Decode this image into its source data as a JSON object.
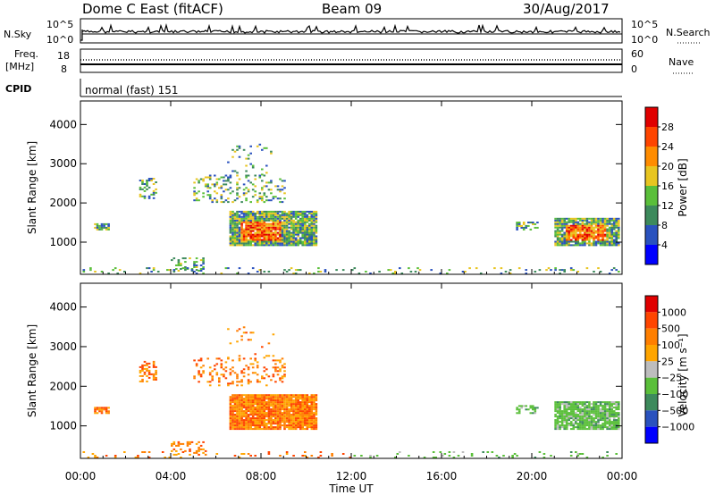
{
  "header": {
    "station": "Dome C East (fitACF)",
    "beam": "Beam 09",
    "date": "30/Aug/2017"
  },
  "chart_data": [
    {
      "type": "line",
      "name": "noise-panel",
      "left_label": "N.Sky",
      "left_ticks": [
        "10^5",
        "10^0"
      ],
      "right_label": "N.Search",
      "right_ticks": [
        "10^5",
        "10^0"
      ]
    },
    {
      "type": "line",
      "name": "freq-panel",
      "left_label_line1": "Freq.",
      "left_label_line2": "[MHz]",
      "left_ticks": [
        "18",
        "8"
      ],
      "right_label": "Nave",
      "right_ticks": [
        "60",
        "0"
      ]
    },
    {
      "type": "text",
      "name": "cpid-panel",
      "left_label": "CPID",
      "value": "normal (fast) 151"
    },
    {
      "type": "heatmap",
      "name": "power-panel",
      "ylabel": "Slant Range [km]",
      "yticks": [
        1000,
        2000,
        3000,
        4000
      ],
      "ylim": [
        180,
        4600
      ],
      "colorbar_label": "Power [dB]",
      "colorbar_ticks": [
        "4",
        "8",
        "12",
        "16",
        "20",
        "24",
        "28"
      ],
      "colors": [
        "#0000ff",
        "#2a52be",
        "#3d8a5c",
        "#5abf3a",
        "#e8c520",
        "#ff8c00",
        "#ff4500",
        "#e00000"
      ]
    },
    {
      "type": "heatmap",
      "name": "velocity-panel",
      "ylabel": "Slant Range [km]",
      "yticks": [
        1000,
        2000,
        3000,
        4000
      ],
      "ylim": [
        180,
        4600
      ],
      "colorbar_label": "Velocity [m s⁻¹]",
      "colorbar_ticks": [
        "1000",
        "500",
        "100",
        "25",
        "−25",
        "−100",
        "−500",
        "−1000"
      ],
      "colors": [
        "#0000ff",
        "#2a52be",
        "#3d8a5c",
        "#5abf3a",
        "#bdbdbd",
        "#ffa500",
        "#ff7f00",
        "#ff4500",
        "#e00000"
      ]
    }
  ],
  "xaxis": {
    "label": "Time UT",
    "ticks": [
      "00:00",
      "04:00",
      "08:00",
      "12:00",
      "16:00",
      "20:00",
      "00:00"
    ]
  }
}
